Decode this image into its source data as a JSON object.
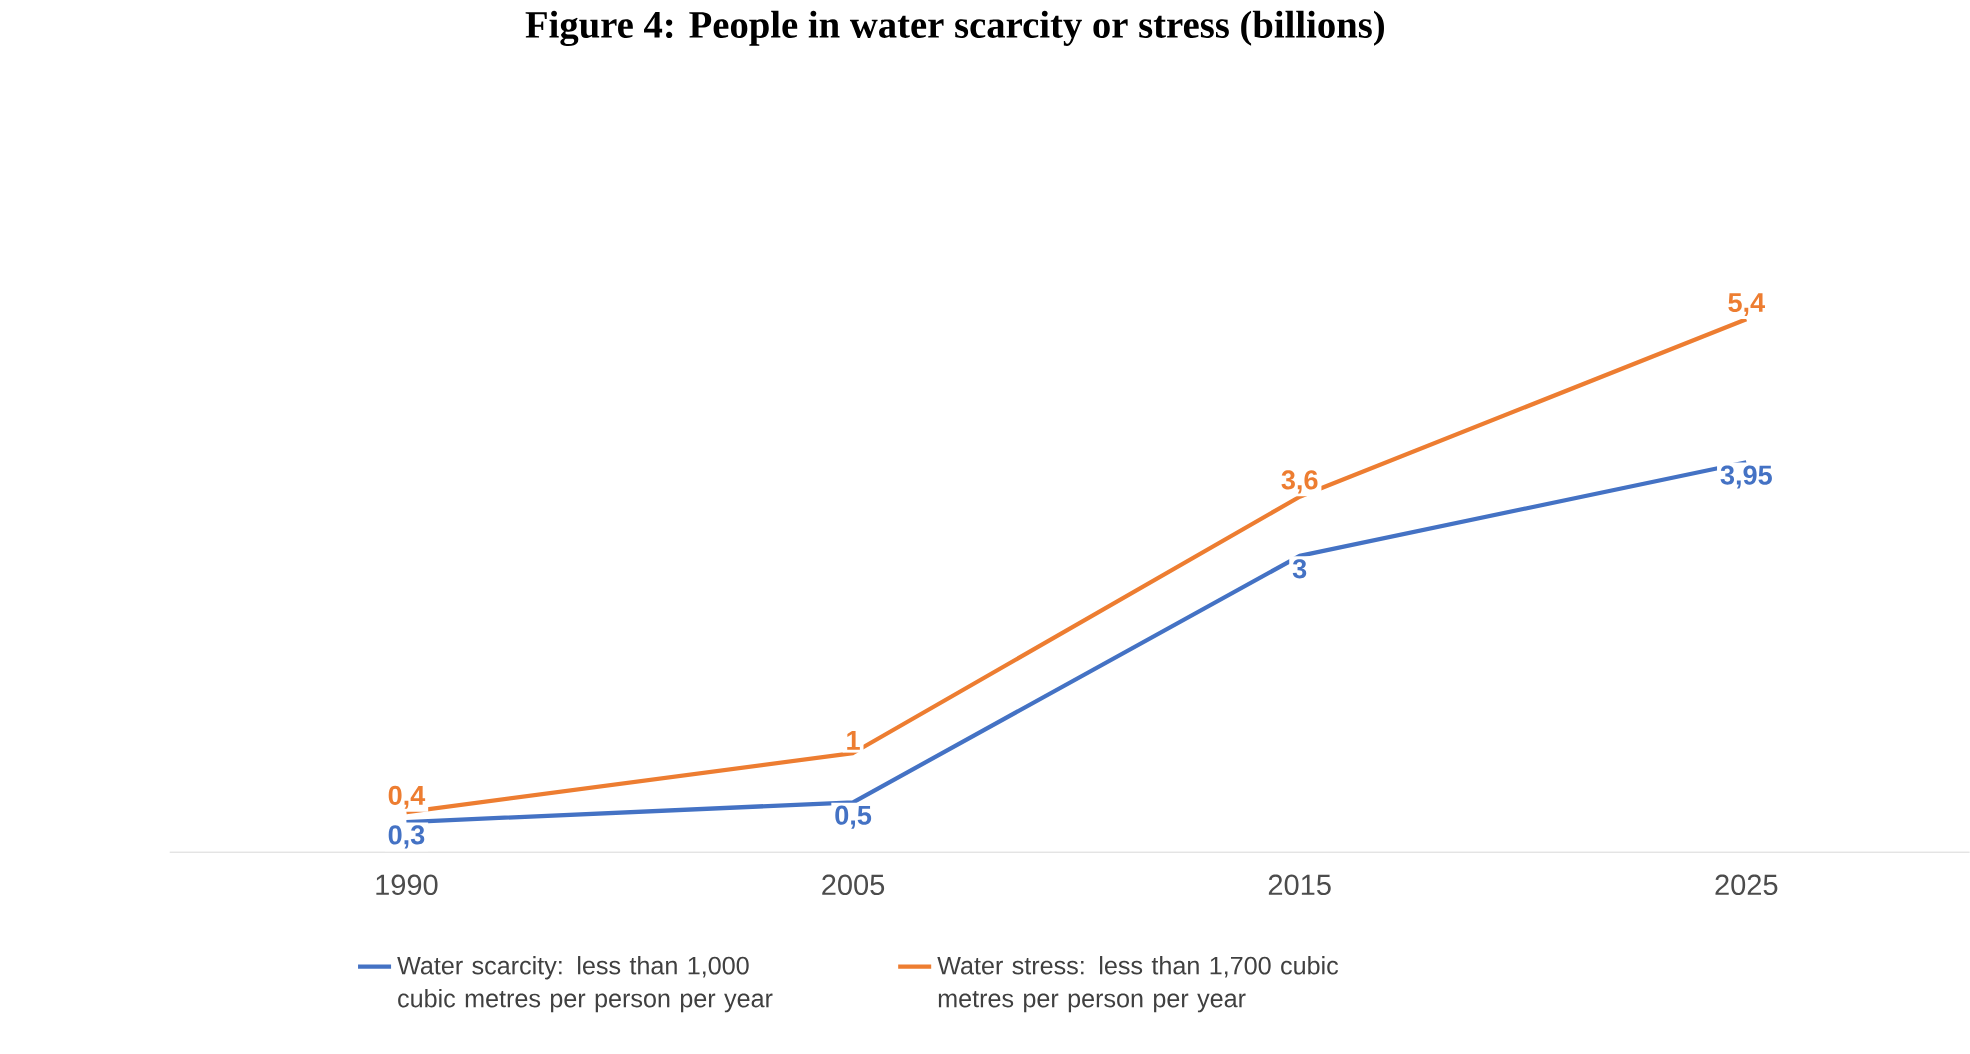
{
  "chart_data": {
    "type": "line",
    "title": "Figure 4: People in water scarcity or stress (billions)",
    "categories": [
      "1990",
      "2005",
      "2015",
      "2025"
    ],
    "tick_labels": "x",
    "grid": false,
    "legend": "bottom",
    "marker": "none",
    "line_style": "solid",
    "series": [
      {
        "name": "Water scarcity: less than 1,000 cubic metres per person per year",
        "color": "#4472c4",
        "values": [
          0.3,
          0.5,
          3,
          3.95
        ],
        "value_labels": [
          "0,3",
          "0,5",
          "3",
          "3,95"
        ]
      },
      {
        "name": "Water stress: less than 1,700 cubic metres per person per year",
        "color": "#ed7d31",
        "values": [
          0.4,
          1,
          3.6,
          5.4
        ],
        "value_labels": [
          "0,4",
          "1",
          "3,6",
          "5,4"
        ]
      }
    ]
  }
}
